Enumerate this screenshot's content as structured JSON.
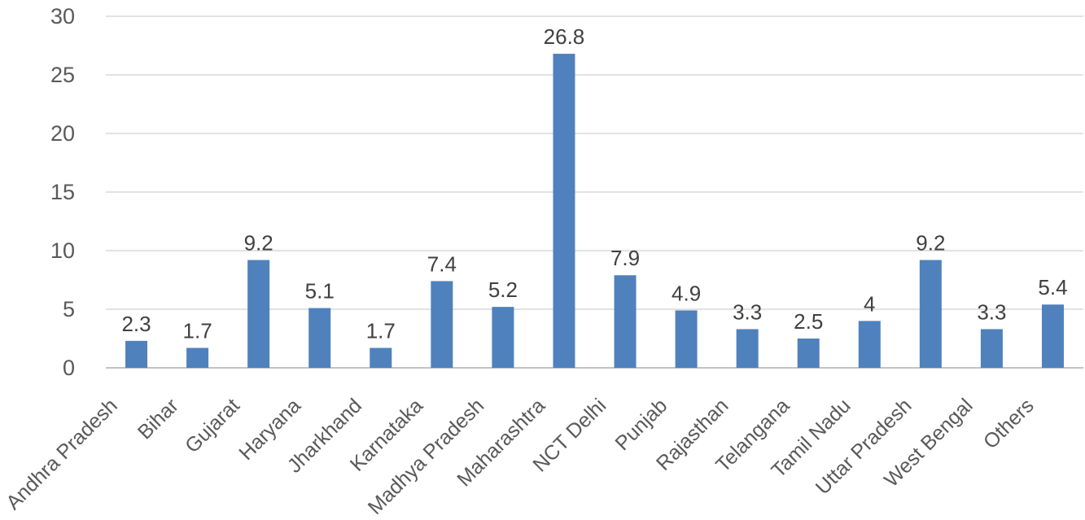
{
  "chart_data": {
    "type": "bar",
    "title": "",
    "xlabel": "",
    "ylabel": "",
    "categories": [
      "Andhra Pradesh",
      "Bihar",
      "Gujarat",
      "Haryana",
      "Jharkhand",
      "Karnataka",
      "Madhya Pradesh",
      "Maharashtra",
      "NCT Delhi",
      "Punjab",
      "Rajasthan",
      "Telangana",
      "Tamil Nadu",
      "Uttar Pradesh",
      "West Bengal",
      "Others"
    ],
    "values": [
      2.3,
      1.7,
      9.2,
      5.1,
      1.7,
      7.4,
      5.2,
      26.8,
      7.9,
      4.9,
      3.3,
      2.5,
      4,
      9.2,
      3.3,
      5.4
    ],
    "data_labels": [
      "2.3",
      "1.7",
      "9.2",
      "5.1",
      "1.7",
      "7.4",
      "5.2",
      "26.8",
      "7.9",
      "4.9",
      "3.3",
      "2.5",
      "4",
      "9.2",
      "3.3",
      "5.4"
    ],
    "ylim": [
      0,
      30
    ],
    "yticks": [
      0,
      5,
      10,
      15,
      20,
      25,
      30
    ],
    "grid": true,
    "legend": false,
    "colors": {
      "bar": "#4f81bd",
      "gridline": "#d9d9d9",
      "axis_line": "#c3c3c3",
      "tick_label": "#595959",
      "data_label": "#404040",
      "background": "#ffffff"
    }
  }
}
